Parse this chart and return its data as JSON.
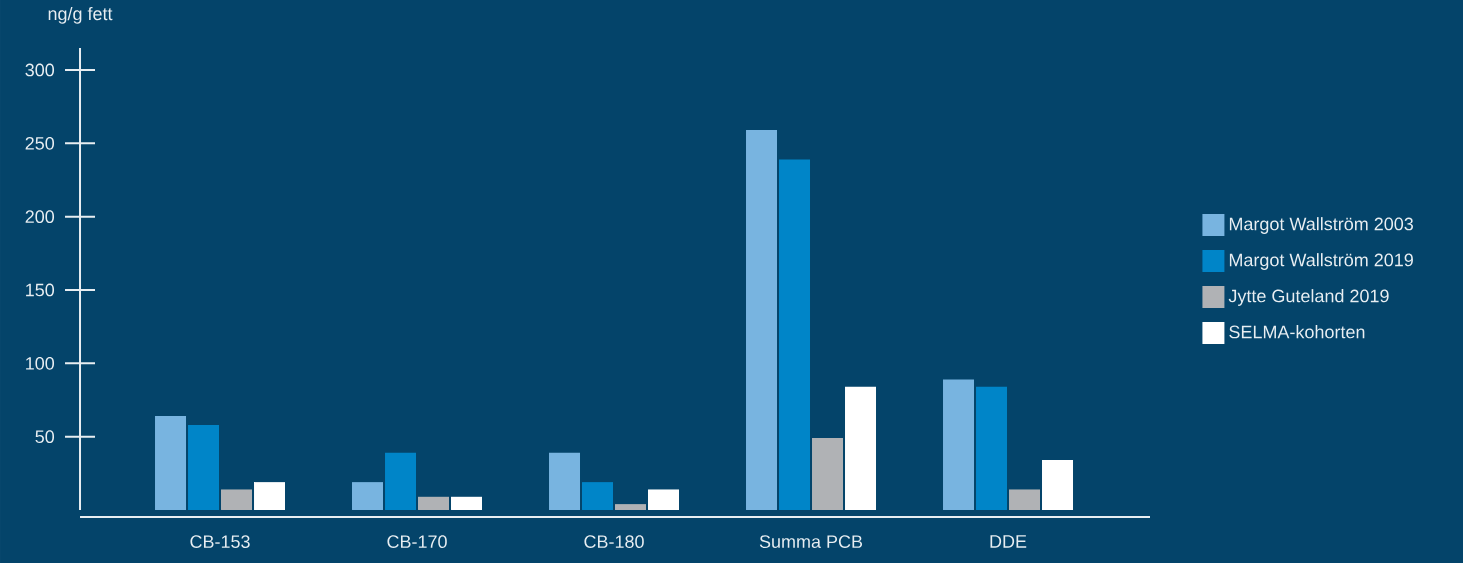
{
  "chart_data": {
    "type": "bar",
    "ylabel": "ng/g fett",
    "categories": [
      "CB-153",
      "CB-170",
      "CB-180",
      "Summa PCB",
      "DDE"
    ],
    "series": [
      {
        "name": "Margot Wallström 2003",
        "color": "#78b4e0",
        "values": [
          64,
          19,
          39,
          259,
          89
        ]
      },
      {
        "name": "Margot Wallström 2019",
        "color": "#0085c8",
        "values": [
          58,
          39,
          19,
          239,
          84
        ]
      },
      {
        "name": "Jytte Guteland 2019",
        "color": "#b0b2b5",
        "values": [
          14,
          9,
          4,
          49,
          14
        ]
      },
      {
        "name": "SELMA-kohorten",
        "color": "#ffffff",
        "values": [
          19,
          9,
          14,
          84,
          34
        ]
      }
    ],
    "ylim": [
      0,
      315
    ],
    "yticks": [
      50,
      100,
      150,
      200,
      250,
      300
    ],
    "grid": false,
    "legend": "right"
  }
}
